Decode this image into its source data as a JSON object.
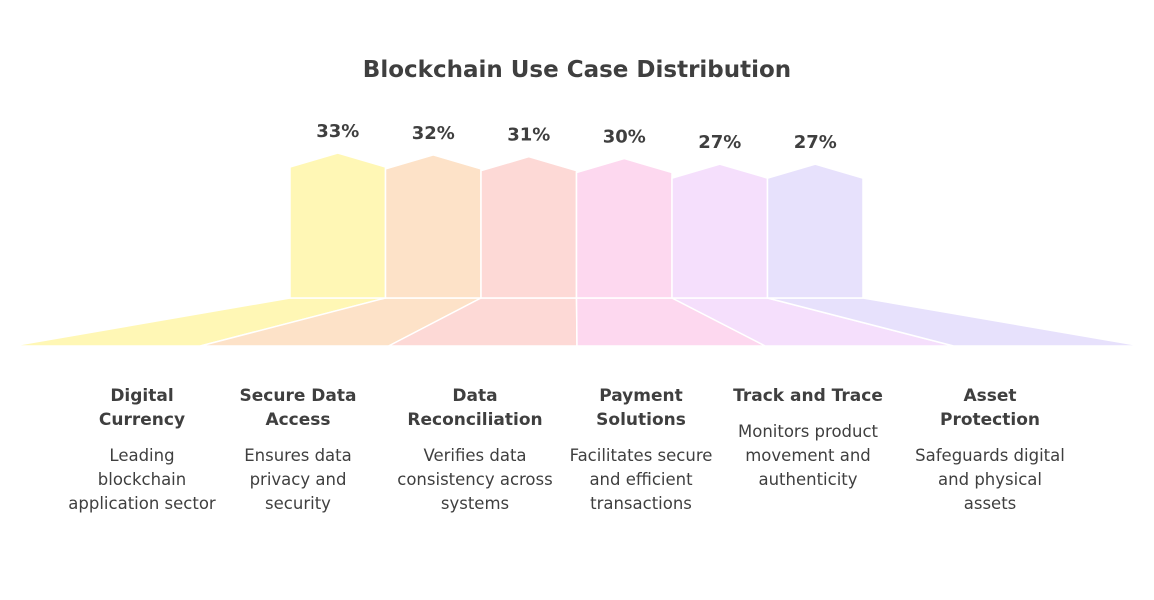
{
  "chart_data": {
    "type": "bar",
    "title": "Blockchain Use Case Distribution",
    "unit": "%",
    "categories": [
      "Digital Currency",
      "Secure Data Access",
      "Data Reconciliation",
      "Payment Solutions",
      "Track and Trace",
      "Asset Protection"
    ],
    "values": [
      33,
      32,
      31,
      30,
      27,
      27
    ],
    "value_labels": [
      "33%",
      "32%",
      "31%",
      "30%",
      "27%",
      "27%"
    ],
    "descriptions": [
      "Leading blockchain application sector",
      "Ensures data privacy and security",
      "Verifies data consistency across systems",
      "Facilitates secure and efficient transactions",
      "Monitors product movement and authenticity",
      "Safeguards digital and physical assets"
    ],
    "colors": [
      "#fff7b5",
      "#fde2c8",
      "#fdd9d6",
      "#fdd8ef",
      "#f5dffc",
      "#e7e1fc"
    ],
    "legend": "none",
    "grid": false
  }
}
